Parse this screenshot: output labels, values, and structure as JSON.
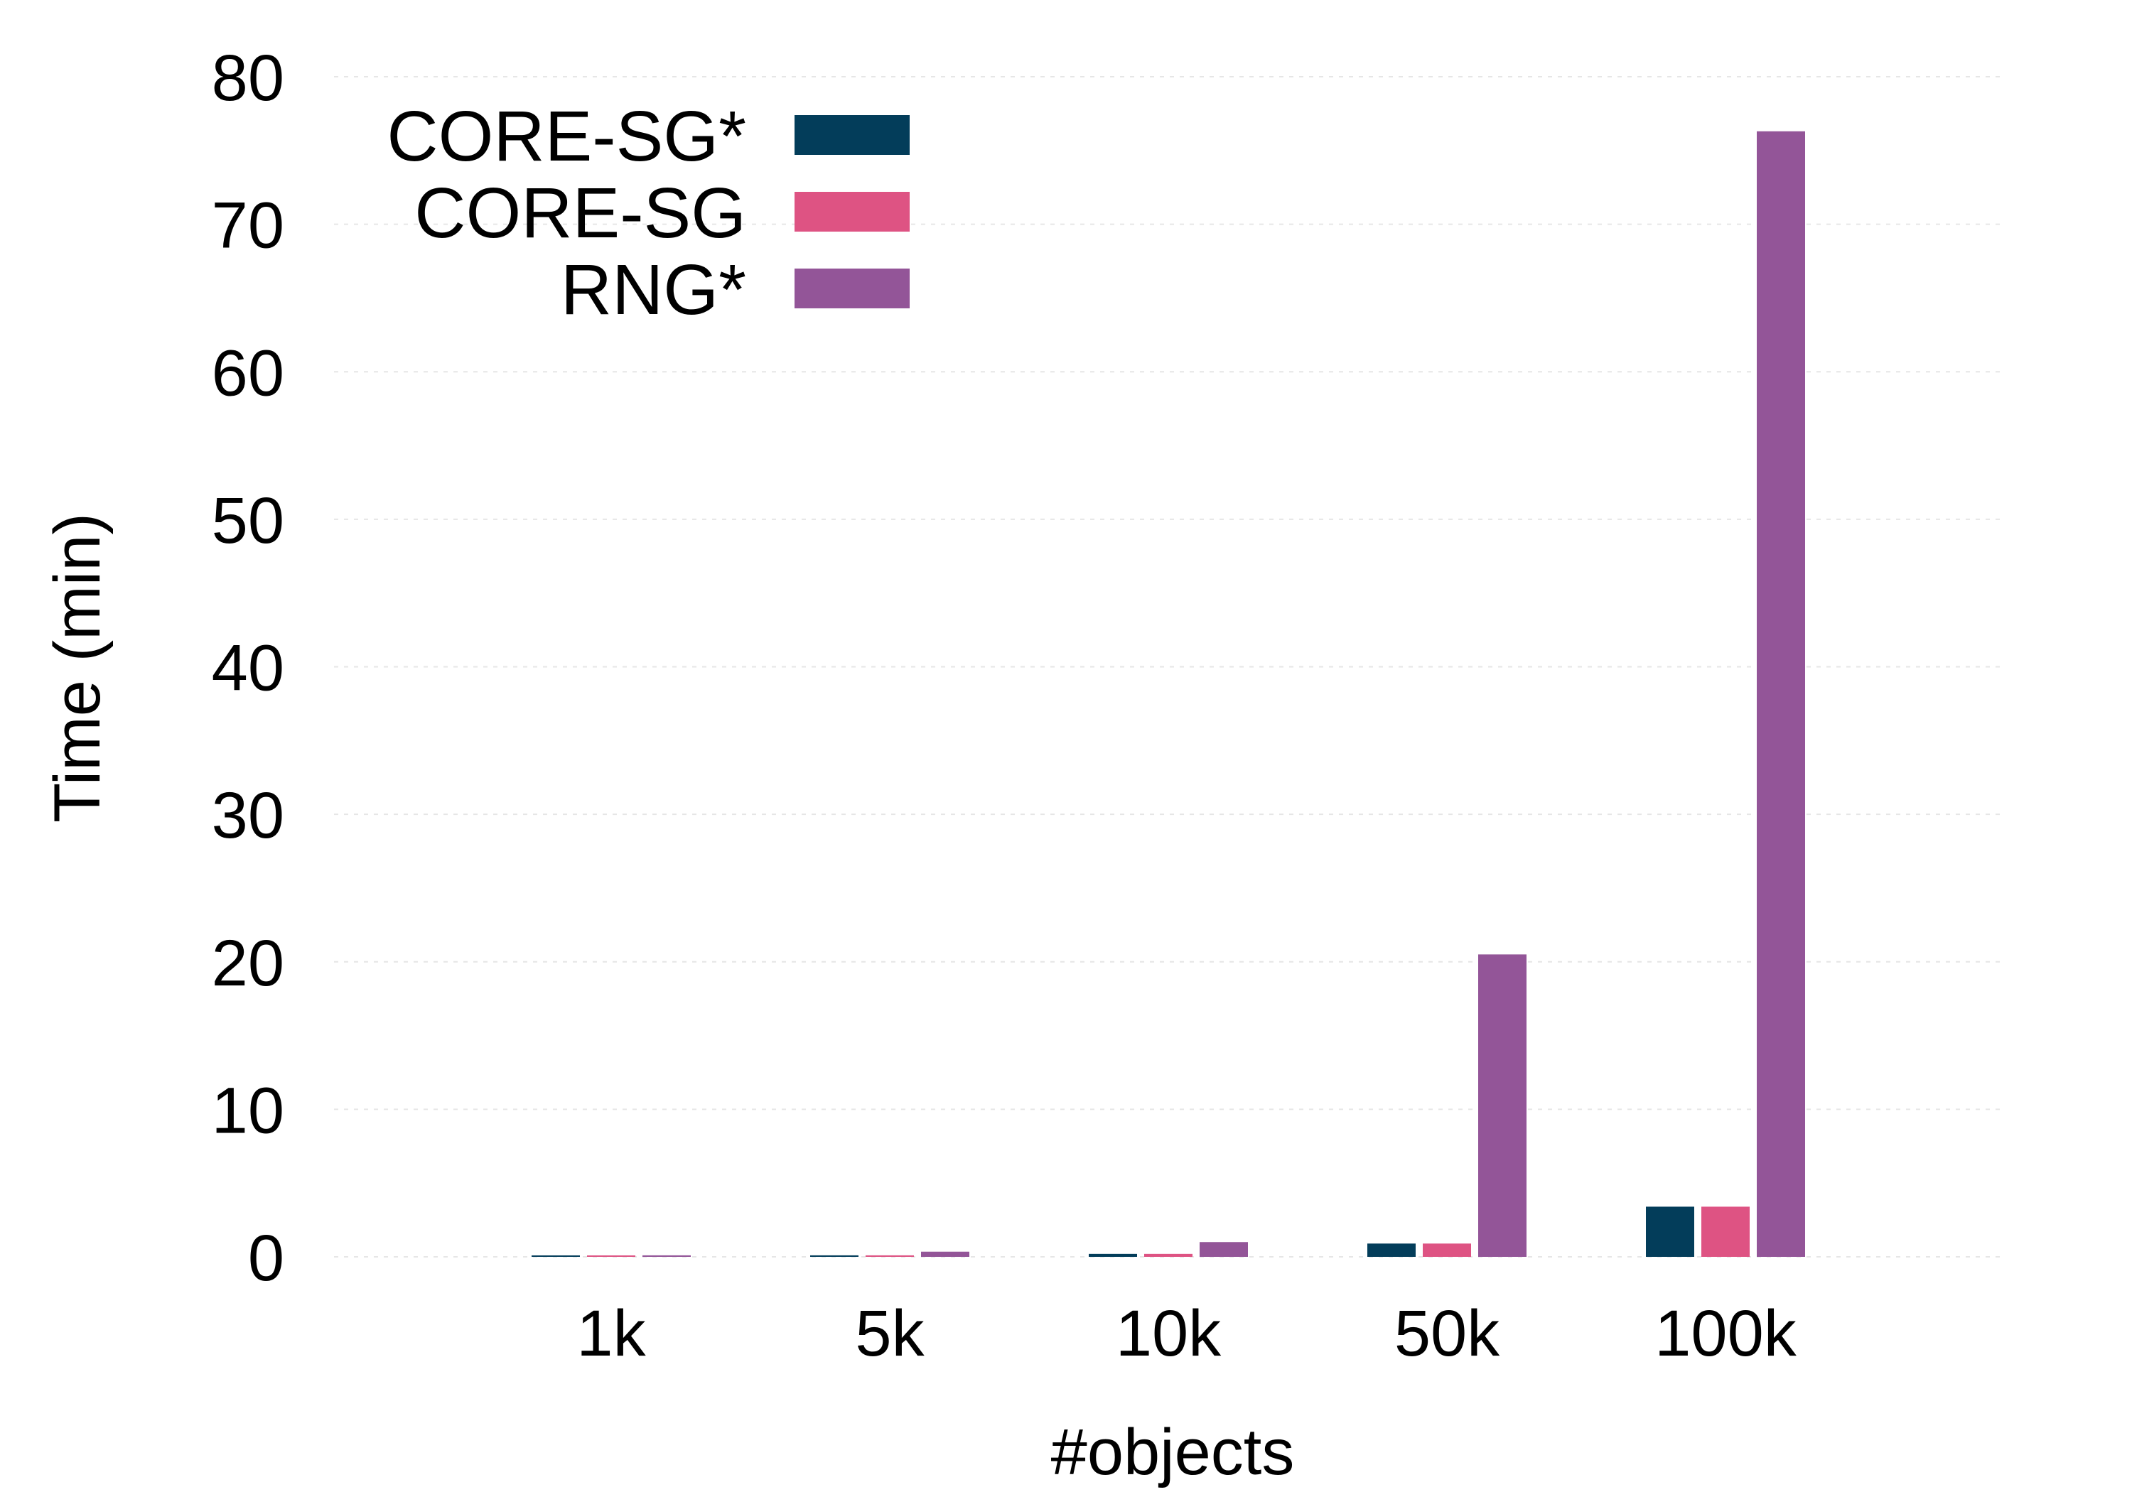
{
  "chart_data": {
    "type": "bar",
    "title": "",
    "xlabel": "#objects",
    "ylabel": "Time (min)",
    "categories": [
      "1k",
      "5k",
      "10k",
      "50k",
      "100k"
    ],
    "ylim": [
      0,
      80
    ],
    "yticks": [
      0,
      10,
      20,
      30,
      40,
      50,
      60,
      70,
      80
    ],
    "ytick_labels": [
      "0",
      "10",
      "20",
      "30",
      "40",
      "50",
      "60",
      "70",
      "80"
    ],
    "grid": "horizontal dotted",
    "legend_position": "top-left",
    "series": [
      {
        "name": "CORE-SG*",
        "color": "#033d5a",
        "values": [
          0.05,
          0.1,
          0.2,
          0.9,
          3.4
        ]
      },
      {
        "name": "CORE-SG",
        "color": "#de5383",
        "values": [
          0.05,
          0.1,
          0.2,
          0.9,
          3.4
        ]
      },
      {
        "name": "RNG*",
        "color": "#935598",
        "values": [
          0.1,
          0.35,
          1.0,
          20.5,
          76.3
        ]
      }
    ]
  }
}
